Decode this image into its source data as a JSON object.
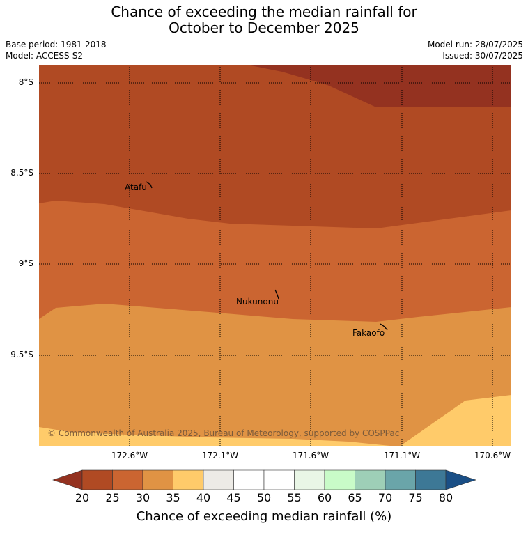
{
  "title_line1": "Chance of exceeding the median rainfall for",
  "title_line2": "October to December 2025",
  "base_period": "Base period: 1981-2018",
  "model": "Model: ACCESS-S2",
  "model_run": "Model run: 28/07/2025",
  "issued": "Issued: 30/07/2025",
  "lat_labels": [
    "8°S",
    "8.5°S",
    "9°S",
    "9.5°S"
  ],
  "lon_labels": [
    "172.6°W",
    "172.1°W",
    "171.6°W",
    "171.1°W",
    "170.6°W"
  ],
  "places": [
    "Atafu",
    "Nukunonu",
    "Fakaofo"
  ],
  "copyright": "© Commonwealth of Australia 2025, Bureau of Meteorology, supported by COSPPac",
  "colorbar": {
    "ticks": [
      "20",
      "25",
      "30",
      "35",
      "40",
      "45",
      "50",
      "55",
      "60",
      "65",
      "70",
      "75",
      "80"
    ],
    "label": "Chance of exceeding median rainfall (%)",
    "colors": [
      "#b04a23",
      "#cb6531",
      "#e09344",
      "#ffcb6a",
      "#edebe6",
      "#ffffff",
      "#ffffff",
      "#e9f6e6",
      "#c9fbc8",
      "#9ecfb7",
      "#6aa5a9",
      "#3d7896"
    ],
    "under_color": "#943220",
    "over_color": "#1a4f86"
  }
}
